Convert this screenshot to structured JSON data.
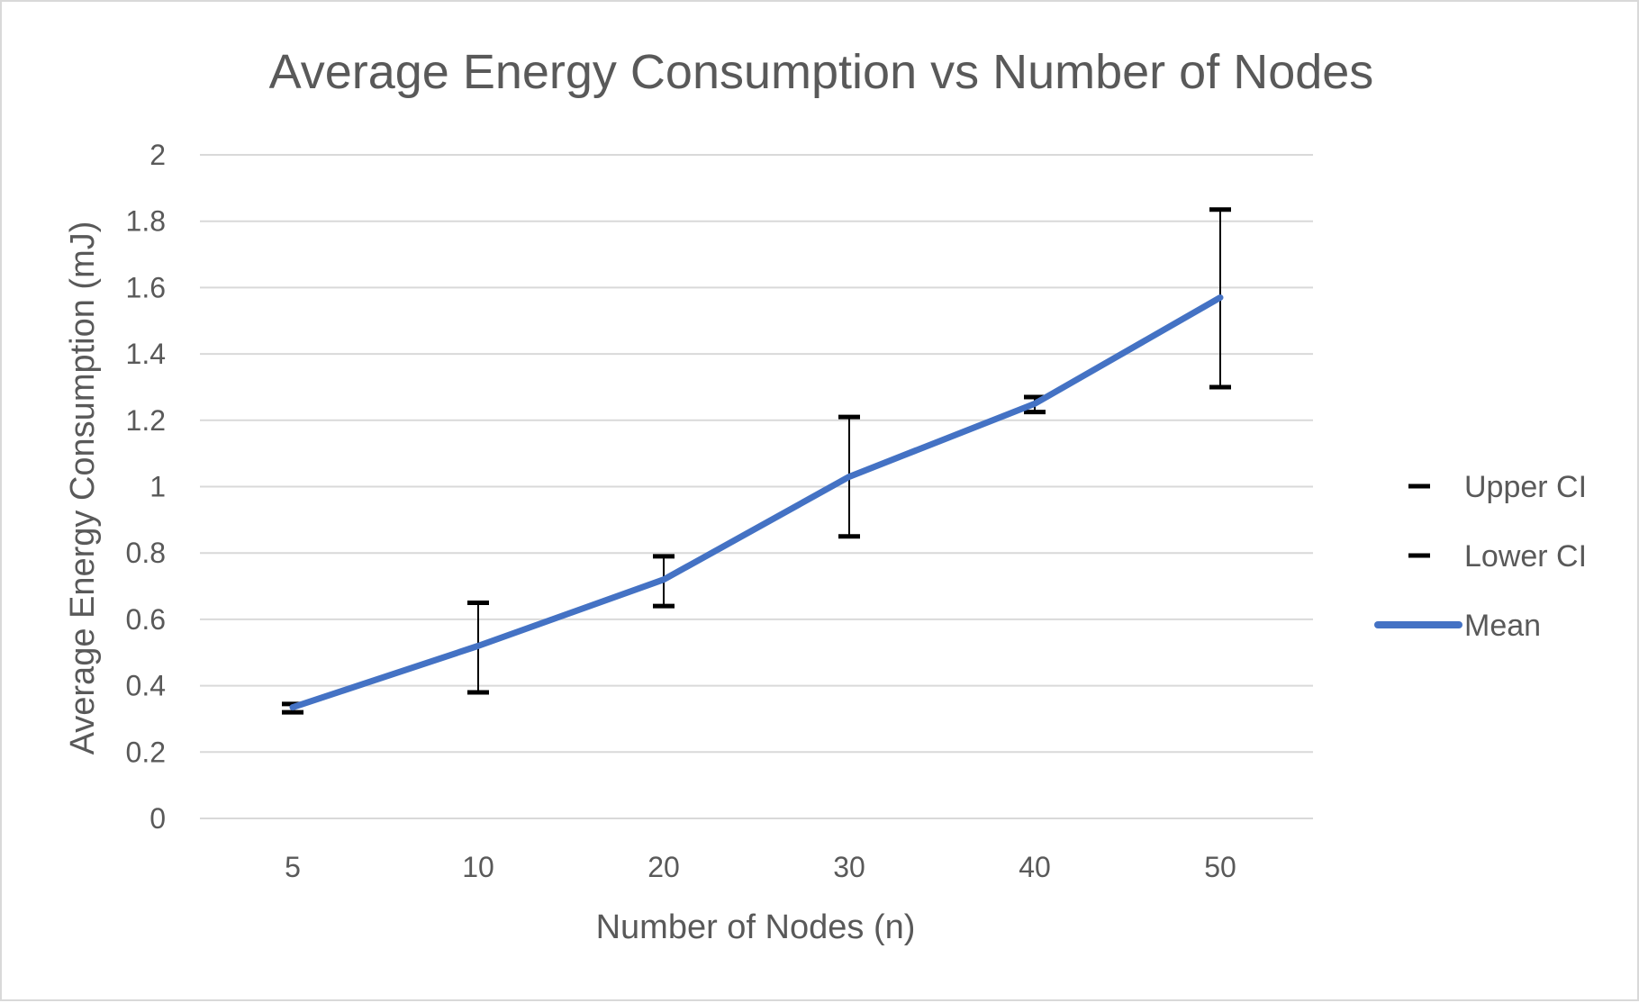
{
  "chart_data": {
    "type": "line",
    "title": "Average Energy Consumption vs Number of Nodes",
    "xlabel": "Number of Nodes (n)",
    "ylabel": "Average Energy Consumption (mJ)",
    "categories": [
      "5",
      "10",
      "20",
      "30",
      "40",
      "50"
    ],
    "ylim": [
      0,
      2
    ],
    "yticks": [
      0,
      0.2,
      0.4,
      0.6,
      0.8,
      1,
      1.2,
      1.4,
      1.6,
      1.8,
      2
    ],
    "ytick_labels": [
      "0",
      "0.2",
      "0.4",
      "0.6",
      "0.8",
      "1",
      "1.2",
      "1.4",
      "1.6",
      "1.8",
      "2"
    ],
    "grid": true,
    "legend_position": "right",
    "series": [
      {
        "name": "Upper CI",
        "values": [
          0.345,
          0.65,
          0.79,
          1.21,
          1.27,
          1.835
        ],
        "color": "#000000",
        "marker": "dash"
      },
      {
        "name": "Lower CI",
        "values": [
          0.32,
          0.38,
          0.64,
          0.85,
          1.225,
          1.3
        ],
        "color": "#000000",
        "marker": "dash"
      },
      {
        "name": "Mean",
        "values": [
          0.335,
          0.52,
          0.72,
          1.03,
          1.25,
          1.57
        ],
        "color": "#4472C4",
        "marker": "none"
      }
    ]
  }
}
